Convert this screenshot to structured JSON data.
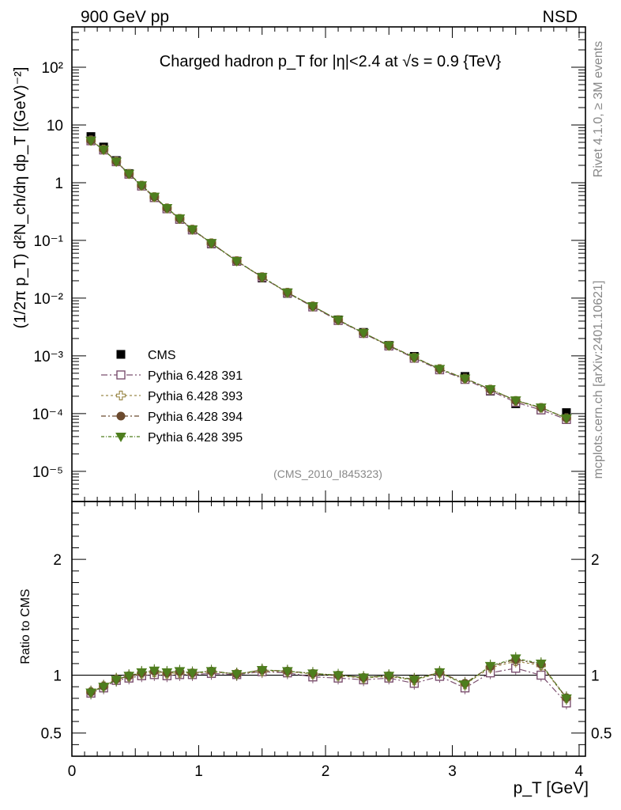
{
  "header": {
    "left_label": "900 GeV pp",
    "right_label": "NSD"
  },
  "side_labels": {
    "rivet": "Rivet 4.1.0, ≥ 3M events",
    "mcplots": "mcplots.cern.ch [arXiv:2401.10621]"
  },
  "chart_data": {
    "type": "scatter",
    "title": "Charged hadron p_T for |η|<2.4 at √s = 0.9 {TeV}",
    "analysis_tag": "(CMS_2010_I845323)",
    "xlabel": "p_T [GeV]",
    "ylabel": "(1/2π p_T) d²N_ch/dη dp_T [(GeV)⁻²]",
    "ratio_ylabel": "Ratio to CMS",
    "xlim": [
      0,
      4.05
    ],
    "ylim": [
      3e-06,
      500
    ],
    "ratio_ylim": [
      0.3,
      2.5
    ],
    "yscale": "log",
    "x_ticks": [
      0,
      1,
      2,
      3,
      4
    ],
    "y_ticks": [
      {
        "value": 1e-05,
        "label": "10⁻⁵"
      },
      {
        "value": 0.0001,
        "label": "10⁻⁴"
      },
      {
        "value": 0.001,
        "label": "10⁻³"
      },
      {
        "value": 0.01,
        "label": "10⁻²"
      },
      {
        "value": 0.1,
        "label": "10⁻¹"
      },
      {
        "value": 1,
        "label": "1"
      },
      {
        "value": 10,
        "label": "10"
      },
      {
        "value": 100,
        "label": "10²"
      }
    ],
    "ratio_ticks": [
      {
        "value": 0.5,
        "label": "0.5"
      },
      {
        "value": 1,
        "label": "1"
      },
      {
        "value": 2,
        "label": "2"
      }
    ],
    "x": [
      0.15,
      0.25,
      0.35,
      0.45,
      0.55,
      0.65,
      0.75,
      0.85,
      0.95,
      1.1,
      1.3,
      1.5,
      1.7,
      1.9,
      2.1,
      2.3,
      2.5,
      2.7,
      2.9,
      3.1,
      3.3,
      3.5,
      3.7,
      3.9
    ],
    "cms": {
      "name": "CMS",
      "values": [
        6.3,
        4.15,
        2.42,
        1.44,
        0.88,
        0.55,
        0.355,
        0.232,
        0.152,
        0.087,
        0.0435,
        0.0223,
        0.0121,
        0.00715,
        0.0042,
        0.00255,
        0.00152,
        0.00098,
        0.00058,
        0.00044,
        0.000245,
        0.000148,
        0.000116,
        0.000104
      ]
    },
    "series": [
      {
        "name": "Pythia 6.428 391",
        "color": "#7b4f6f",
        "marker": "open-square",
        "dash": "8,3,2,3",
        "ratio": [
          0.845,
          0.89,
          0.955,
          0.975,
          0.995,
          1.005,
          0.995,
          1.005,
          1.005,
          1.015,
          1.005,
          1.03,
          1.02,
          0.985,
          0.975,
          0.96,
          0.975,
          0.93,
          0.99,
          0.89,
          1.02,
          1.06,
          1.0,
          0.76
        ]
      },
      {
        "name": "Pythia 6.428 393",
        "color": "#9c8a4c",
        "marker": "open-cross",
        "dash": "3,3",
        "ratio": [
          0.855,
          0.905,
          0.965,
          0.99,
          1.015,
          1.025,
          1.015,
          1.02,
          1.015,
          1.03,
          1.01,
          1.035,
          1.03,
          1.01,
          0.995,
          0.975,
          0.99,
          0.955,
          1.02,
          0.92,
          1.065,
          1.12,
          1.085,
          0.8
        ]
      },
      {
        "name": "Pythia 6.428 394",
        "color": "#6b4a2e",
        "marker": "filled-circle",
        "dash": "6,3,2,3",
        "ratio": [
          0.855,
          0.905,
          0.965,
          0.995,
          1.02,
          1.035,
          1.02,
          1.03,
          1.02,
          1.035,
          1.01,
          1.045,
          1.035,
          1.015,
          1.0,
          0.98,
          0.995,
          0.965,
          1.025,
          0.93,
          1.075,
          1.135,
          1.095,
          0.805
        ]
      },
      {
        "name": "Pythia 6.428 395",
        "color": "#4e7e1e",
        "marker": "filled-triangle-down",
        "dash": "4,2,1,2",
        "ratio": [
          0.85,
          0.9,
          0.96,
          0.995,
          1.025,
          1.04,
          1.025,
          1.035,
          1.02,
          1.035,
          1.01,
          1.045,
          1.035,
          1.015,
          1.0,
          0.98,
          0.995,
          0.96,
          1.025,
          0.92,
          1.08,
          1.145,
          1.1,
          0.8
        ]
      }
    ]
  }
}
